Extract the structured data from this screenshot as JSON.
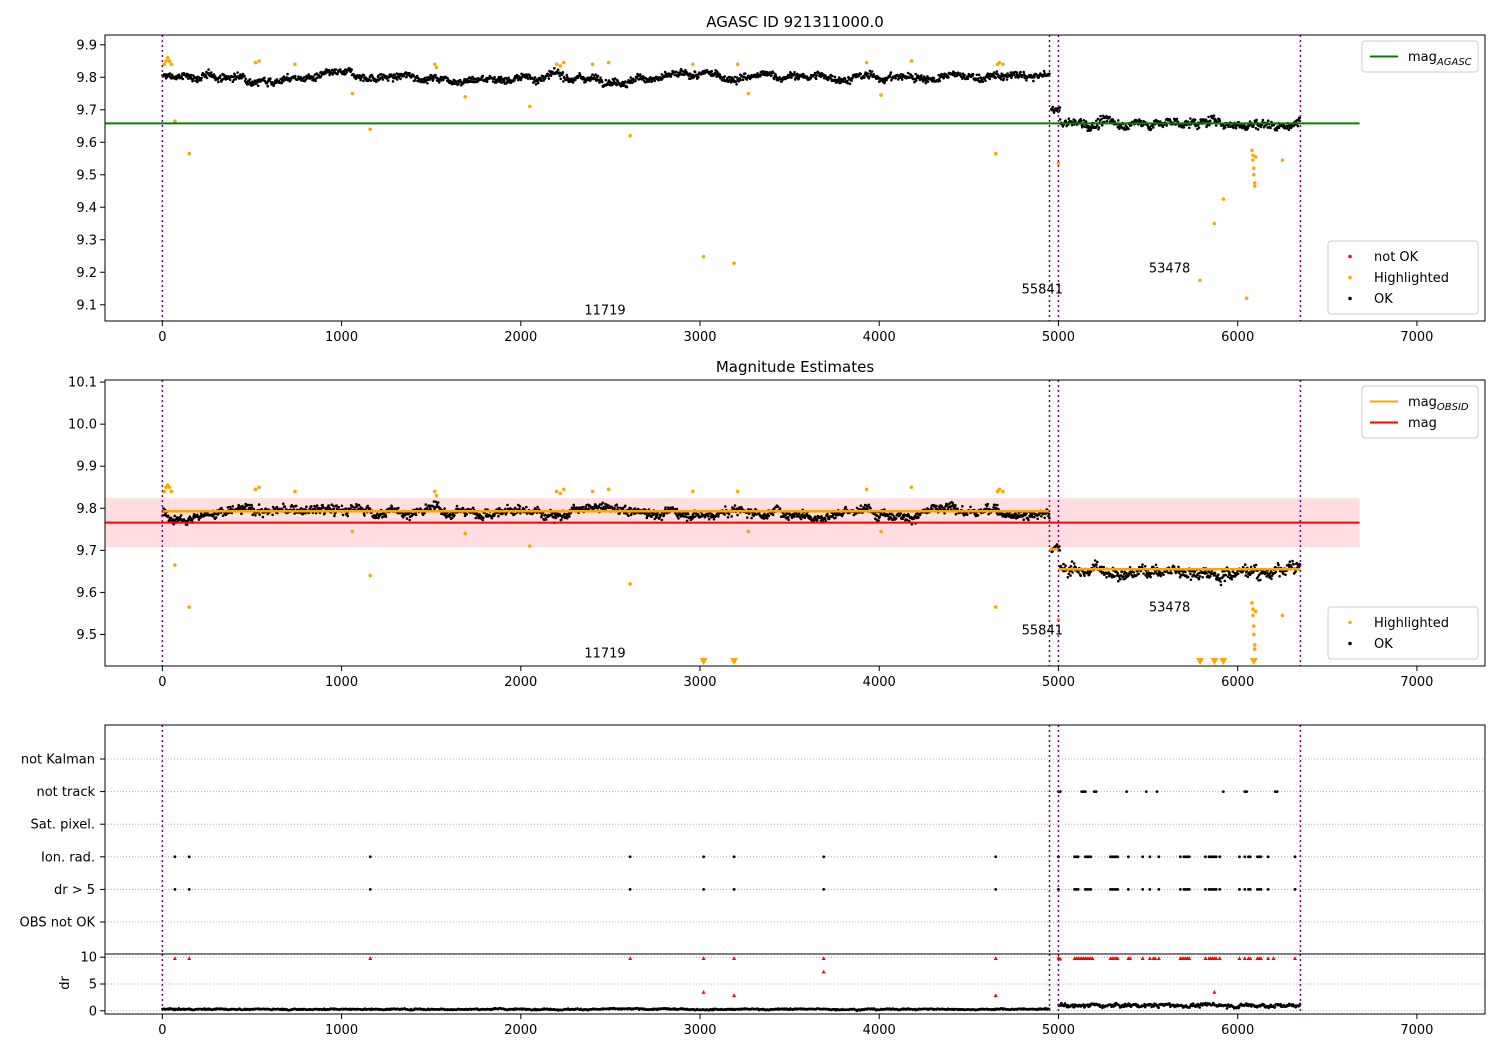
{
  "figure": {
    "background": "#ffffff"
  },
  "colors": {
    "ok": "#000000",
    "highlighted": "#ffa500",
    "not_ok": "#ff0000",
    "mag_agasc": "#008000",
    "mag_obsid": "#ffa500",
    "mag": "#ff0000",
    "mag_band": "#ffdde0",
    "vline": "#800080",
    "grid": "#b0b0b0"
  },
  "chart_data": [
    {
      "id": "top",
      "type": "scatter",
      "title": "AGASC ID 921311000.0",
      "xlim": [
        -320,
        7380
      ],
      "ylim": [
        9.05,
        9.93
      ],
      "xticks": [
        0,
        1000,
        2000,
        3000,
        4000,
        5000,
        6000,
        7000
      ],
      "yticks": [
        9.1,
        9.2,
        9.3,
        9.4,
        9.5,
        9.6,
        9.7,
        9.8,
        9.9
      ],
      "vlines": [
        0,
        4950,
        5000,
        6350
      ],
      "hlines": [
        {
          "name": "mag_AGASC",
          "y": 9.658,
          "x0": -320,
          "x1": 6680
        }
      ],
      "annotations": [
        {
          "text": "11719",
          "x": 2470,
          "y": 9.07
        },
        {
          "text": "55841",
          "x": 4910,
          "y": 9.135
        },
        {
          "text": "53478",
          "x": 5620,
          "y": 9.2
        }
      ],
      "segments": [
        {
          "x0": 0,
          "x1": 4950,
          "mean": 9.8,
          "spread": 0.012
        },
        {
          "x0": 4960,
          "x1": 5010,
          "mean": 9.703,
          "spread": 0.01
        },
        {
          "x0": 5010,
          "x1": 6350,
          "mean": 9.66,
          "spread": 0.015
        }
      ],
      "highlighted_points": [
        [
          10,
          9.84
        ],
        [
          20,
          9.85
        ],
        [
          30,
          9.86
        ],
        [
          40,
          9.85
        ],
        [
          50,
          9.84
        ],
        [
          70,
          9.665
        ],
        [
          150,
          9.565
        ],
        [
          520,
          9.845
        ],
        [
          540,
          9.85
        ],
        [
          740,
          9.84
        ],
        [
          1060,
          9.75
        ],
        [
          1160,
          9.64
        ],
        [
          1520,
          9.84
        ],
        [
          1530,
          9.83
        ],
        [
          1690,
          9.74
        ],
        [
          2050,
          9.71
        ],
        [
          2200,
          9.84
        ],
        [
          2220,
          9.835
        ],
        [
          2240,
          9.845
        ],
        [
          2400,
          9.84
        ],
        [
          2490,
          9.845
        ],
        [
          2610,
          9.62
        ],
        [
          2960,
          9.84
        ],
        [
          3020,
          9.248
        ],
        [
          3190,
          9.228
        ],
        [
          3210,
          9.84
        ],
        [
          3270,
          9.75
        ],
        [
          3930,
          9.845
        ],
        [
          4010,
          9.745
        ],
        [
          4180,
          9.85
        ],
        [
          4650,
          9.565
        ],
        [
          4660,
          9.84
        ],
        [
          4670,
          9.845
        ],
        [
          4690,
          9.84
        ],
        [
          5000,
          9.535
        ],
        [
          5790,
          9.175
        ],
        [
          5870,
          9.35
        ],
        [
          5920,
          9.425
        ],
        [
          6050,
          9.12
        ],
        [
          6080,
          9.575
        ],
        [
          6085,
          9.56
        ],
        [
          6085,
          9.545
        ],
        [
          6090,
          9.52
        ],
        [
          6090,
          9.5
        ],
        [
          6095,
          9.475
        ],
        [
          6095,
          9.465
        ],
        [
          6100,
          9.555
        ],
        [
          6250,
          9.545
        ]
      ],
      "legends": [
        {
          "position": "upper-right",
          "items": [
            {
              "label": "mag",
              "sub": "AGASC",
              "kind": "line",
              "color": "#008000"
            }
          ]
        },
        {
          "position": "lower-right",
          "items": [
            {
              "label": "not OK",
              "kind": "marker",
              "color": "#ff0000"
            },
            {
              "label": "Highlighted",
              "kind": "marker",
              "color": "#ffa500"
            },
            {
              "label": "OK",
              "kind": "marker",
              "color": "#000000"
            }
          ]
        }
      ]
    },
    {
      "id": "middle",
      "type": "scatter",
      "title": "Magnitude Estimates",
      "xlim": [
        -320,
        7380
      ],
      "ylim": [
        9.425,
        10.105
      ],
      "xticks": [
        0,
        1000,
        2000,
        3000,
        4000,
        5000,
        6000,
        7000
      ],
      "yticks": [
        9.5,
        9.6,
        9.7,
        9.8,
        9.9,
        10.0,
        10.1
      ],
      "vlines": [
        0,
        4950,
        5000,
        6350
      ],
      "band": {
        "y0": 9.708,
        "y1": 9.824,
        "x0": -320,
        "x1": 6680
      },
      "hlines": [
        {
          "name": "mag",
          "y": 9.766,
          "x0": -320,
          "x1": 6680
        }
      ],
      "obsid_steps": [
        {
          "x0": 0,
          "x1": 4950,
          "y": 9.793
        },
        {
          "x0": 4950,
          "x1": 5000,
          "y": 9.703
        },
        {
          "x0": 5000,
          "x1": 6350,
          "y": 9.655
        }
      ],
      "annotations": [
        {
          "text": "11719",
          "x": 2470,
          "y": 9.445
        },
        {
          "text": "55841",
          "x": 4910,
          "y": 9.5
        },
        {
          "text": "53478",
          "x": 5620,
          "y": 9.555
        }
      ],
      "segments": [
        {
          "x0": 0,
          "x1": 4950,
          "mean": 9.793,
          "spread": 0.012
        },
        {
          "x0": 4960,
          "x1": 5010,
          "mean": 9.703,
          "spread": 0.01
        },
        {
          "x0": 5010,
          "x1": 6350,
          "mean": 9.655,
          "spread": 0.015
        }
      ],
      "highlighted_points": [
        [
          10,
          9.84
        ],
        [
          20,
          9.85
        ],
        [
          30,
          9.855
        ],
        [
          40,
          9.85
        ],
        [
          50,
          9.84
        ],
        [
          70,
          9.665
        ],
        [
          150,
          9.565
        ],
        [
          520,
          9.845
        ],
        [
          540,
          9.85
        ],
        [
          740,
          9.84
        ],
        [
          1060,
          9.745
        ],
        [
          1160,
          9.64
        ],
        [
          1520,
          9.84
        ],
        [
          1530,
          9.83
        ],
        [
          1690,
          9.74
        ],
        [
          2050,
          9.71
        ],
        [
          2200,
          9.84
        ],
        [
          2220,
          9.835
        ],
        [
          2240,
          9.845
        ],
        [
          2400,
          9.84
        ],
        [
          2490,
          9.845
        ],
        [
          2610,
          9.62
        ],
        [
          2960,
          9.84
        ],
        [
          3210,
          9.84
        ],
        [
          3270,
          9.745
        ],
        [
          3930,
          9.845
        ],
        [
          4010,
          9.745
        ],
        [
          4180,
          9.85
        ],
        [
          4650,
          9.565
        ],
        [
          4660,
          9.84
        ],
        [
          4670,
          9.845
        ],
        [
          4690,
          9.84
        ],
        [
          5000,
          9.535
        ],
        [
          6080,
          9.575
        ],
        [
          6085,
          9.56
        ],
        [
          6085,
          9.545
        ],
        [
          6090,
          9.52
        ],
        [
          6090,
          9.5
        ],
        [
          6095,
          9.475
        ],
        [
          6095,
          9.465
        ],
        [
          6100,
          9.555
        ],
        [
          6250,
          9.545
        ]
      ],
      "clipped_low_markers": [
        3020,
        3190,
        5790,
        5870,
        5920,
        6090
      ],
      "legends": [
        {
          "position": "upper-right",
          "items": [
            {
              "label": "mag",
              "sub": "OBSID",
              "kind": "line",
              "color": "#ffa500"
            },
            {
              "label": "mag",
              "kind": "line",
              "color": "#ff0000"
            }
          ]
        },
        {
          "position": "lower-right",
          "items": [
            {
              "label": "Highlighted",
              "kind": "marker",
              "color": "#ffa500"
            },
            {
              "label": "OK",
              "kind": "marker",
              "color": "#000000"
            }
          ]
        }
      ]
    },
    {
      "id": "flags",
      "type": "scatter",
      "xlim": [
        -320,
        7380
      ],
      "vlines": [
        0,
        4950,
        5000,
        6350
      ],
      "categories": [
        "OBS not OK",
        "dr > 5",
        "Ion. rad.",
        "Sat. pixel.",
        "not track",
        "not Kalman"
      ],
      "flag_points": {
        "dr > 5": [
          70,
          150,
          1160,
          2610,
          3020,
          3190,
          3690,
          4650,
          5000,
          5090,
          5100,
          5110,
          5150,
          5160,
          5170,
          5180,
          5290,
          5300,
          5310,
          5320,
          5330,
          5390,
          5470,
          5510,
          5560,
          5680,
          5700,
          5710,
          5720,
          5730,
          5820,
          5840,
          5850,
          5860,
          5870,
          5880,
          5900,
          6010,
          6040,
          6060,
          6070,
          6110,
          6120,
          6130,
          6170,
          6320
        ],
        "Ion. rad.": [
          70,
          150,
          1160,
          2610,
          3020,
          3190,
          3690,
          4650,
          5000,
          5090,
          5100,
          5110,
          5150,
          5160,
          5170,
          5180,
          5290,
          5300,
          5310,
          5320,
          5330,
          5390,
          5470,
          5510,
          5560,
          5680,
          5700,
          5710,
          5720,
          5730,
          5820,
          5840,
          5850,
          5860,
          5870,
          5880,
          5900,
          6010,
          6040,
          6060,
          6070,
          6110,
          6120,
          6130,
          6170,
          6320
        ],
        "not track": [
          5000,
          5010,
          5130,
          5140,
          5150,
          5200,
          5210,
          5380,
          5490,
          5550,
          5920,
          6040,
          6050,
          6210,
          6220
        ]
      }
    },
    {
      "id": "dr",
      "type": "scatter",
      "ylabel": "dr",
      "xlim": [
        -320,
        7380
      ],
      "ylim": [
        -0.6,
        10.6
      ],
      "xticks": [
        0,
        1000,
        2000,
        3000,
        4000,
        5000,
        6000,
        7000
      ],
      "yticks": [
        0,
        5,
        10
      ],
      "vlines": [
        0,
        4950,
        5000,
        6350
      ],
      "segments": [
        {
          "x0": 0,
          "x1": 4950,
          "mean": 0.3,
          "spread": 0.12
        },
        {
          "x0": 5000,
          "x1": 6350,
          "mean": 1.0,
          "spread": 0.35
        }
      ],
      "not_ok_points": [
        [
          70,
          9.8
        ],
        [
          150,
          9.8
        ],
        [
          1160,
          9.8
        ],
        [
          2610,
          9.8
        ],
        [
          3020,
          9.8
        ],
        [
          3020,
          3.5
        ],
        [
          3190,
          9.8
        ],
        [
          3190,
          2.9
        ],
        [
          3690,
          9.8
        ],
        [
          3690,
          7.3
        ],
        [
          4650,
          9.8
        ],
        [
          4650,
          2.9
        ],
        [
          5000,
          9.9
        ],
        [
          5010,
          9.7
        ],
        [
          5090,
          9.8
        ],
        [
          5100,
          9.8
        ],
        [
          5110,
          9.8
        ],
        [
          5120,
          9.8
        ],
        [
          5130,
          9.8
        ],
        [
          5140,
          9.8
        ],
        [
          5150,
          9.8
        ],
        [
          5160,
          9.8
        ],
        [
          5170,
          9.8
        ],
        [
          5180,
          9.8
        ],
        [
          5190,
          9.8
        ],
        [
          5290,
          9.8
        ],
        [
          5300,
          9.8
        ],
        [
          5310,
          9.8
        ],
        [
          5320,
          9.8
        ],
        [
          5330,
          9.8
        ],
        [
          5390,
          9.8
        ],
        [
          5400,
          9.8
        ],
        [
          5470,
          9.8
        ],
        [
          5510,
          9.8
        ],
        [
          5530,
          9.8
        ],
        [
          5540,
          9.8
        ],
        [
          5560,
          9.8
        ],
        [
          5680,
          9.8
        ],
        [
          5690,
          9.8
        ],
        [
          5700,
          9.8
        ],
        [
          5710,
          9.8
        ],
        [
          5720,
          9.8
        ],
        [
          5730,
          9.8
        ],
        [
          5820,
          9.8
        ],
        [
          5840,
          9.8
        ],
        [
          5850,
          9.8
        ],
        [
          5860,
          9.8
        ],
        [
          5870,
          9.8
        ],
        [
          5880,
          9.8
        ],
        [
          5870,
          3.5
        ],
        [
          5900,
          9.8
        ],
        [
          6010,
          9.8
        ],
        [
          6040,
          9.8
        ],
        [
          6060,
          9.8
        ],
        [
          6070,
          9.8
        ],
        [
          6110,
          9.8
        ],
        [
          6120,
          9.8
        ],
        [
          6130,
          9.8
        ],
        [
          6170,
          9.8
        ],
        [
          6200,
          9.8
        ],
        [
          6320,
          9.8
        ]
      ]
    }
  ]
}
